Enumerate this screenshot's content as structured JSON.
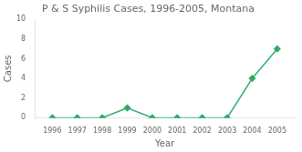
{
  "chart_data": {
    "type": "line",
    "title": "P & S Syphilis Cases, 1996-2005, Montana",
    "xlabel": "Year",
    "ylabel": "Cases",
    "x": [
      1996,
      1997,
      1998,
      1999,
      2000,
      2001,
      2002,
      2003,
      2004,
      2005
    ],
    "values": [
      0,
      0,
      0,
      1,
      0,
      0,
      0,
      0,
      4,
      7
    ],
    "color": "#2aab6a",
    "marker": "diamond",
    "xlim": [
      1995.3,
      2005.7
    ],
    "xticks": [
      1996,
      1997,
      1998,
      1999,
      2000,
      2001,
      2002,
      2003,
      2004,
      2005
    ],
    "ylim": [
      0,
      10
    ],
    "yticks": [
      0,
      2,
      4,
      6,
      8,
      10
    ],
    "grid": false
  }
}
